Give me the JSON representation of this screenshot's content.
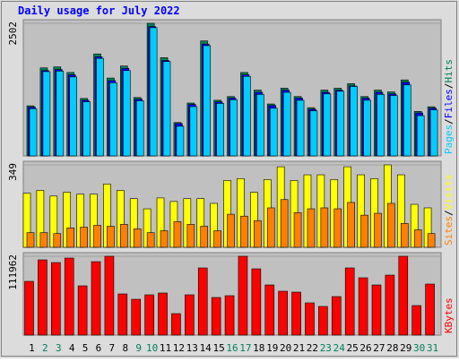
{
  "title": "Daily usage for July 2022",
  "chart_data": [
    {
      "type": "bar",
      "legend_separator": "/",
      "ylim": [
        0,
        2502
      ],
      "series": [
        {
          "name": "Hits",
          "color": "#00805c",
          "values": [
            945,
            1661,
            1679,
            1574,
            1084,
            1924,
            1469,
            1696,
            1102,
            2502,
            1854,
            630,
            997,
            2170,
            1050,
            1120,
            1574,
            1242,
            980,
            1277,
            1120,
            910,
            1242,
            1277,
            1364,
            1120,
            1242,
            1207,
            1434,
            840,
            927
          ]
        },
        {
          "name": "Files",
          "color": "#0000ff",
          "values": [
            920,
            1610,
            1630,
            1530,
            1050,
            1870,
            1420,
            1650,
            1070,
            2440,
            1800,
            610,
            970,
            2110,
            1020,
            1090,
            1530,
            1200,
            950,
            1240,
            1090,
            880,
            1200,
            1240,
            1320,
            1090,
            1200,
            1170,
            1390,
            810,
            900
          ]
        },
        {
          "name": "Pages",
          "color": "#00ccff",
          "values": [
            890,
            1590,
            1600,
            1490,
            1020,
            1840,
            1380,
            1610,
            1040,
            2420,
            1780,
            560,
            930,
            2080,
            990,
            1060,
            1500,
            1160,
            900,
            1200,
            1050,
            850,
            1170,
            1220,
            1310,
            1050,
            1160,
            1140,
            1340,
            760,
            870
          ]
        }
      ]
    },
    {
      "type": "bar",
      "legend_separator": "/",
      "ylim": [
        0,
        349
      ],
      "series": [
        {
          "name": "Visits",
          "color": "#ffff00",
          "values": [
            229,
            241,
            217,
            233,
            225,
            225,
            268,
            241,
            206,
            163,
            209,
            194,
            206,
            206,
            186,
            283,
            291,
            233,
            287,
            341,
            283,
            307,
            307,
            287,
            341,
            307,
            291,
            349,
            307,
            182,
            167
          ]
        },
        {
          "name": "Sites",
          "color": "#ff8000",
          "values": [
            62,
            62,
            58,
            82,
            85,
            93,
            89,
            97,
            78,
            62,
            70,
            109,
            97,
            89,
            70,
            140,
            132,
            113,
            167,
            202,
            147,
            163,
            167,
            163,
            190,
            136,
            144,
            186,
            101,
            74,
            58
          ]
        }
      ]
    },
    {
      "type": "bar",
      "ylim": [
        0,
        111962
      ],
      "categories": [
        "1",
        "2",
        "3",
        "4",
        "5",
        "6",
        "7",
        "8",
        "9",
        "10",
        "11",
        "12",
        "13",
        "14",
        "15",
        "16",
        "17",
        "18",
        "19",
        "20",
        "21",
        "22",
        "23",
        "24",
        "25",
        "26",
        "27",
        "28",
        "29",
        "30",
        "31"
      ],
      "category_colors": [
        "#000000",
        "#00805c",
        "#00805c",
        "#000000",
        "#000000",
        "#000000",
        "#000000",
        "#000000",
        "#00805c",
        "#00805c",
        "#000000",
        "#000000",
        "#000000",
        "#000000",
        "#000000",
        "#00805c",
        "#00805c",
        "#000000",
        "#000000",
        "#000000",
        "#000000",
        "#000000",
        "#00805c",
        "#00805c",
        "#000000",
        "#000000",
        "#000000",
        "#000000",
        "#000000",
        "#00805c",
        "#00805c"
      ],
      "series": [
        {
          "name": "KBytes",
          "color": "#ff0000",
          "values": [
            76320,
            106850,
            103030,
            109390,
            69960,
            104300,
            111962,
            58510,
            50880,
            57240,
            59780,
            30530,
            57240,
            95400,
            53420,
            55970,
            111962,
            94130,
            71230,
            62330,
            61060,
            45790,
            40700,
            54690,
            95400,
            81410,
            71230,
            85220,
            111962,
            41980,
            72500
          ]
        }
      ]
    }
  ]
}
